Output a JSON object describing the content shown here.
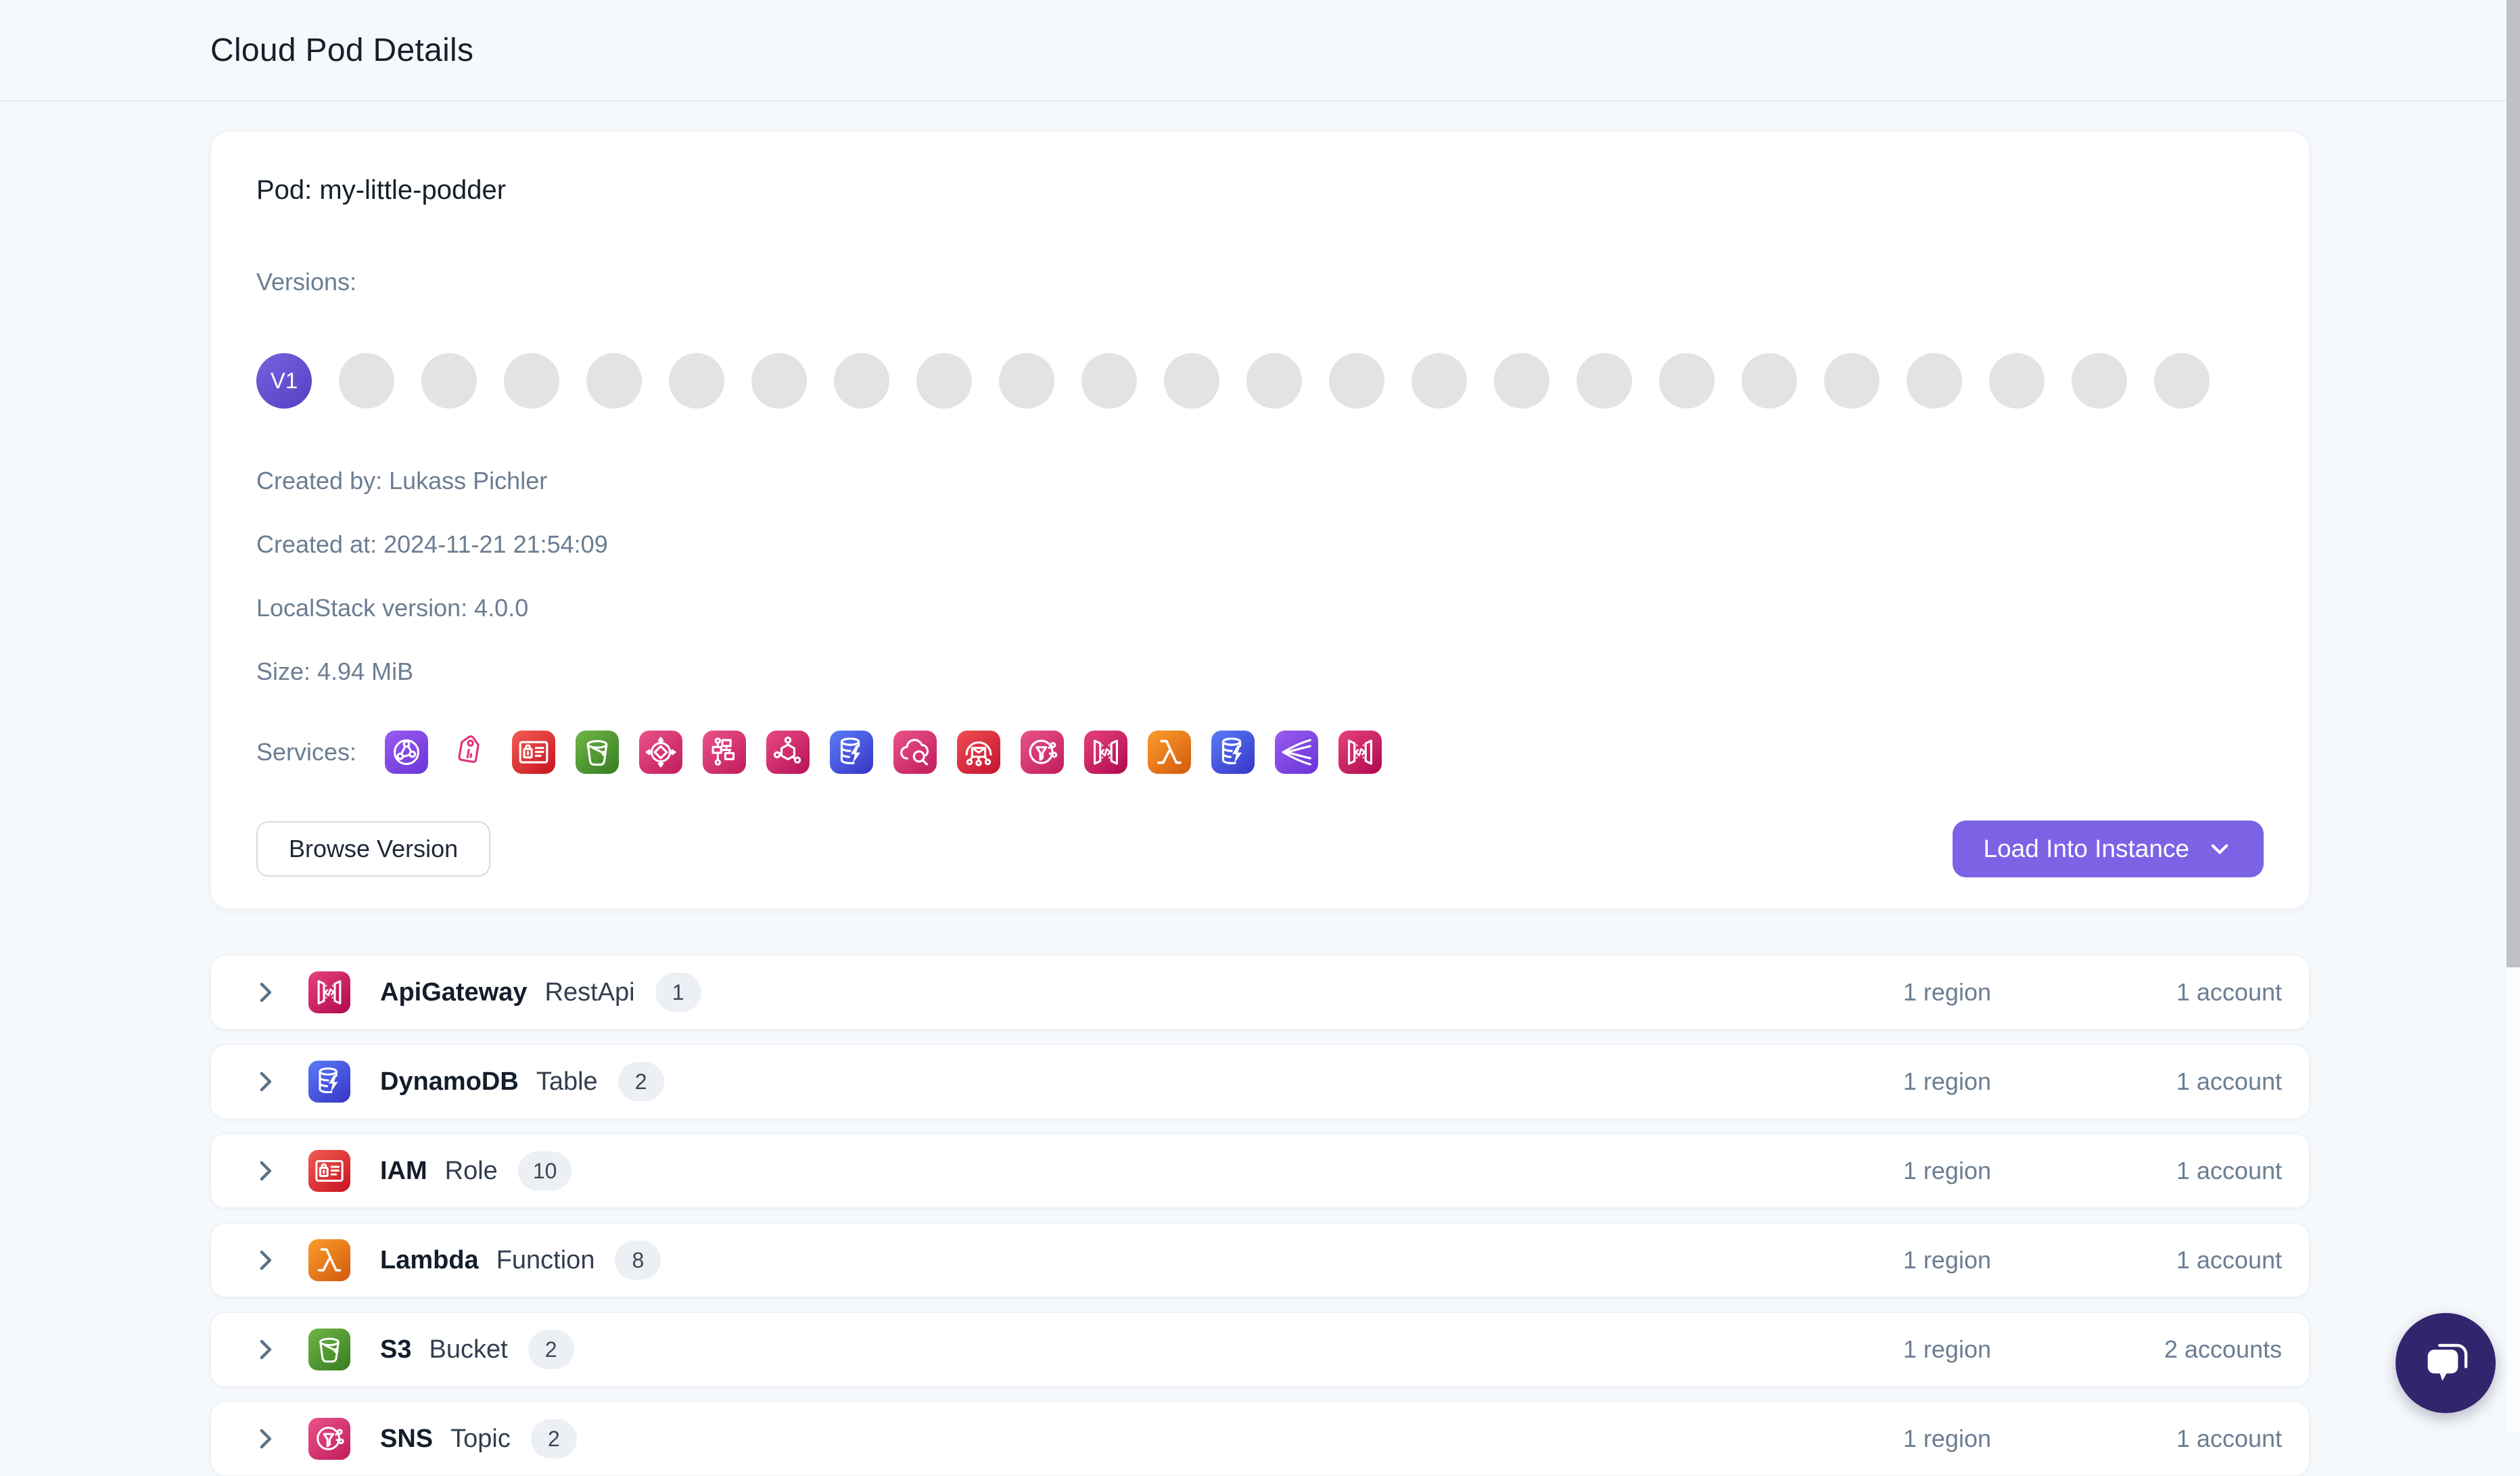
{
  "page": {
    "title": "Cloud Pod Details"
  },
  "pod": {
    "title": "Pod: my-little-podder",
    "versions_label": "Versions:",
    "active_version": "V1",
    "total_versions": 24,
    "meta": {
      "created_by": "Created by: Lukass Pichler",
      "created_at": "Created at: 2024-11-21 21:54:09",
      "localstack_version": "LocalStack version: 4.0.0",
      "size": "Size: 4.94 MiB"
    },
    "services_label": "Services:",
    "services": [
      {
        "name": "route53",
        "glyph": "globe",
        "from": "#9a5cf0",
        "to": "#6a34d9"
      },
      {
        "name": "tagging",
        "glyph": "tag",
        "from": "#e0337a",
        "to": "#c2255c",
        "outline": true
      },
      {
        "name": "iam",
        "glyph": "idcard",
        "from": "#f25c54",
        "to": "#c7131f"
      },
      {
        "name": "s3",
        "glyph": "bucket",
        "from": "#6fb545",
        "to": "#377d22"
      },
      {
        "name": "sqs",
        "glyph": "intarrows",
        "from": "#ea5389",
        "to": "#c01c5c"
      },
      {
        "name": "stepfunctions",
        "glyph": "workflow",
        "from": "#ea5389",
        "to": "#c01c5c"
      },
      {
        "name": "events",
        "glyph": "hexnet",
        "from": "#e84a84",
        "to": "#b51257"
      },
      {
        "name": "dynamodb",
        "glyph": "dblight",
        "from": "#5a7cf8",
        "to": "#3734c4"
      },
      {
        "name": "logs",
        "glyph": "cloudsearch",
        "from": "#ea5389",
        "to": "#c01c5c"
      },
      {
        "name": "ses",
        "glyph": "envelope",
        "from": "#ef4e52",
        "to": "#c4122f"
      },
      {
        "name": "sns",
        "glyph": "funnel",
        "from": "#ea5389",
        "to": "#c01c5c"
      },
      {
        "name": "apigateway",
        "glyph": "codegateway",
        "from": "#e6427e",
        "to": "#b0084d"
      },
      {
        "name": "lambda",
        "glyph": "lambda",
        "from": "#fb9d2c",
        "to": "#d25a0c"
      },
      {
        "name": "dynamodbstreams",
        "glyph": "dblight",
        "from": "#5a7cf8",
        "to": "#3734c4"
      },
      {
        "name": "kinesis",
        "glyph": "streams",
        "from": "#9a5cf0",
        "to": "#6a34d9"
      },
      {
        "name": "apigatewayv2",
        "glyph": "codegateway",
        "from": "#e6427e",
        "to": "#b0084d"
      }
    ],
    "buttons": {
      "browse": "Browse Version",
      "load": "Load Into Instance"
    }
  },
  "resources": {
    "rows": [
      {
        "service": "ApiGateway",
        "type": "RestApi",
        "count": "1",
        "regions": "1 region",
        "accounts": "1 account",
        "icon": {
          "glyph": "codegateway",
          "from": "#e6427e",
          "to": "#b0084d"
        }
      },
      {
        "service": "DynamoDB",
        "type": "Table",
        "count": "2",
        "regions": "1 region",
        "accounts": "1 account",
        "icon": {
          "glyph": "dblight",
          "from": "#5a7cf8",
          "to": "#3734c4"
        }
      },
      {
        "service": "IAM",
        "type": "Role",
        "count": "10",
        "regions": "1 region",
        "accounts": "1 account",
        "icon": {
          "glyph": "idcard",
          "from": "#f25c54",
          "to": "#c7131f"
        }
      },
      {
        "service": "Lambda",
        "type": "Function",
        "count": "8",
        "regions": "1 region",
        "accounts": "1 account",
        "icon": {
          "glyph": "lambda",
          "from": "#fb9d2c",
          "to": "#d25a0c"
        }
      },
      {
        "service": "S3",
        "type": "Bucket",
        "count": "2",
        "regions": "1 region",
        "accounts": "2 accounts",
        "icon": {
          "glyph": "bucket",
          "from": "#6fb545",
          "to": "#377d22"
        }
      },
      {
        "service": "SNS",
        "type": "Topic",
        "count": "2",
        "regions": "1 region",
        "accounts": "1 account",
        "icon": {
          "glyph": "funnel",
          "from": "#ea5389",
          "to": "#c01c5c"
        }
      }
    ]
  },
  "colors": {
    "accent": "#7c63e6",
    "active_version": "#6450cf",
    "chat_bubble": "#33246e",
    "page_background": "#f6f9fc"
  }
}
